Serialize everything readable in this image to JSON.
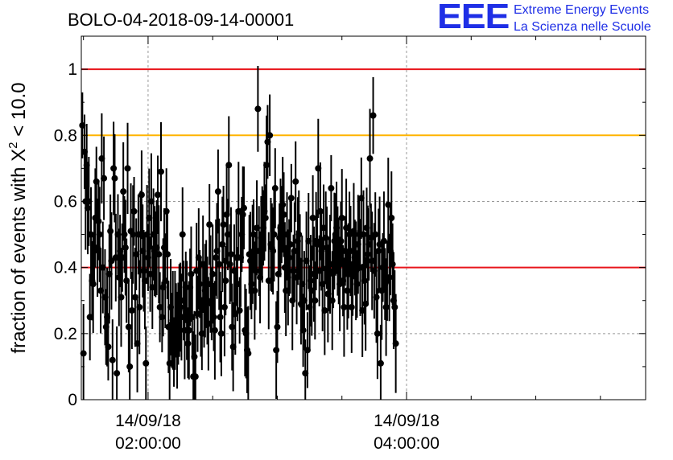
{
  "title": "BOLO-04-2018-09-14-00001",
  "logo": {
    "mark": "EEE",
    "line1": "Extreme Energy Events",
    "line2": "La Scienza nelle Scuole"
  },
  "colors": {
    "accent": "#1f2fe6",
    "red_line": "#e8151b",
    "orange_line": "#ffb400",
    "points": "#000000"
  },
  "chart_data": {
    "type": "scatter",
    "title": "BOLO-04-2018-09-14-00001",
    "xlabel": "",
    "ylabel": "fraction of events with Χ² < 10.0",
    "ylabel_parts": {
      "pre": "fraction of events with Χ",
      "sup": "2",
      "post": " < 10.0"
    },
    "ylim": [
      0,
      1.1
    ],
    "xlim": [
      "01:29:00",
      "05:51:00"
    ],
    "x_units": "time of day, 14/09/18",
    "yticks": [
      "0",
      "0.2",
      "0.4",
      "0.6",
      "0.8",
      "1"
    ],
    "ytick_values": [
      0,
      0.2,
      0.4,
      0.6,
      0.8,
      1.0
    ],
    "xticks": [
      {
        "value": "02:00:00",
        "date": "14/09/18",
        "time": "02:00:00"
      },
      {
        "value": "04:00:00",
        "date": "14/09/18",
        "time": "04:00:00"
      }
    ],
    "minor_x_ticks": [
      "01:30:00",
      "02:30:00",
      "03:00:00",
      "03:30:00",
      "04:30:00",
      "05:00:00",
      "05:30:00"
    ],
    "reference_lines": [
      {
        "y": 1.0,
        "color": "#e8151b"
      },
      {
        "y": 0.8,
        "color": "#ffb400"
      },
      {
        "y": 0.4,
        "color": "#e8151b"
      }
    ],
    "grid": true,
    "series": [
      {
        "error_bars": true,
        "x_start": "01:29:30",
        "x_step_seconds": 30,
        "y": [
          0.83,
          0.14,
          0.75,
          0.6,
          0.71,
          0.58,
          0.6,
          0.25,
          0.5,
          0.36,
          0.35,
          0.45,
          0.55,
          0.66,
          0.46,
          0.54,
          0.5,
          0.33,
          0.73,
          0.4,
          0.67,
          0.31,
          0.22,
          0.25,
          0.16,
          0.38,
          0.51,
          0.42,
          0.12,
          0.7,
          0.67,
          0.43,
          0.08,
          0.5,
          0.37,
          0.45,
          0.31,
          0.43,
          0.63,
          0.5,
          0.46,
          0.36,
          0.7,
          0.22,
          0.1,
          0.51,
          0.27,
          0.5,
          0.57,
          0.31,
          0.44,
          0.17,
          0.5,
          0.28,
          0.5,
          0.62,
          0.45,
          0.39,
          0.36,
          0.11,
          0.5,
          0.43,
          0.55,
          0.38,
          0.6,
          0.34,
          0.5,
          0.45,
          0.44,
          0.46,
          0.62,
          0.44,
          0.28,
          0.69,
          0.25,
          0.34,
          0.46,
          0.36,
          0.57,
          0.44,
          0.22,
          0.11,
          0.28,
          0.21,
          0.24,
          0.14,
          0.24,
          0.24,
          0.18,
          0.23,
          0.27,
          0.28,
          0.25,
          0.5,
          0.3,
          0.21,
          0.34,
          0.27,
          0.17,
          0.21,
          0.34,
          0.38,
          0.25,
          0.07,
          0.13,
          0.07,
          0.39,
          0.26,
          0.43,
          0.35,
          0.28,
          0.2,
          0.41,
          0.28,
          0.33,
          0.35,
          0.3,
          0.23,
          0.53,
          0.35,
          0.29,
          0.38,
          0.25,
          0.21,
          0.43,
          0.45,
          0.63,
          0.41,
          0.25,
          0.2,
          0.47,
          0.53,
          0.28,
          0.36,
          0.56,
          0.5,
          0.71,
          0.41,
          0.44,
          0.22,
          0.16,
          0.39,
          0.26,
          0.43,
          0.35,
          0.57,
          0.27,
          0.43,
          0.5,
          0.56,
          0.58,
          0.21,
          0.2,
          0.15,
          0.14,
          0.44,
          0.42,
          0.35,
          0.44,
          0.5,
          0.33,
          0.39,
          0.52,
          0.88,
          0.45,
          0.37,
          0.49,
          0.5,
          0.52,
          0.57,
          0.55,
          0.71,
          0.78,
          0.36,
          0.8,
          0.47,
          0.46,
          0.45,
          0.5,
          0.64,
          0.15,
          0.22,
          0.38,
          0.49,
          0.52,
          0.53,
          0.59,
          0.56,
          0.4,
          0.33,
          0.5,
          0.37,
          0.43,
          0.47,
          0.61,
          0.3,
          0.39,
          0.45,
          0.66,
          0.37,
          0.48,
          0.5,
          0.42,
          0.29,
          0.35,
          0.21,
          0.3,
          0.08,
          0.42,
          0.15,
          0.48,
          0.28,
          0.36,
          0.33,
          0.55,
          0.38,
          0.3,
          0.48,
          0.47,
          0.7,
          0.39,
          0.57,
          0.45,
          0.35,
          0.52,
          0.27,
          0.49,
          0.46,
          0.32,
          0.38,
          0.41,
          0.64,
          0.3,
          0.39,
          0.48,
          0.5,
          0.52,
          0.45,
          0.42,
          0.35,
          0.48,
          0.55,
          0.36,
          0.28,
          0.45,
          0.52,
          0.33,
          0.39,
          0.5,
          0.45,
          0.28,
          0.38,
          0.51,
          0.43,
          0.39,
          0.35,
          0.47,
          0.5,
          0.4,
          0.61,
          0.27,
          0.5,
          0.36,
          0.29,
          0.52,
          0.44,
          0.47,
          0.73,
          0.49,
          0.42,
          0.86,
          0.39,
          0.5,
          0.31,
          0.2,
          0.45,
          0.47,
          0.11,
          0.33,
          0.4,
          0.48,
          0.35,
          0.28,
          0.36,
          0.59,
          0.37,
          0.45,
          0.55,
          0.41,
          0.3,
          0.28,
          0.17
        ]
      }
    ]
  }
}
